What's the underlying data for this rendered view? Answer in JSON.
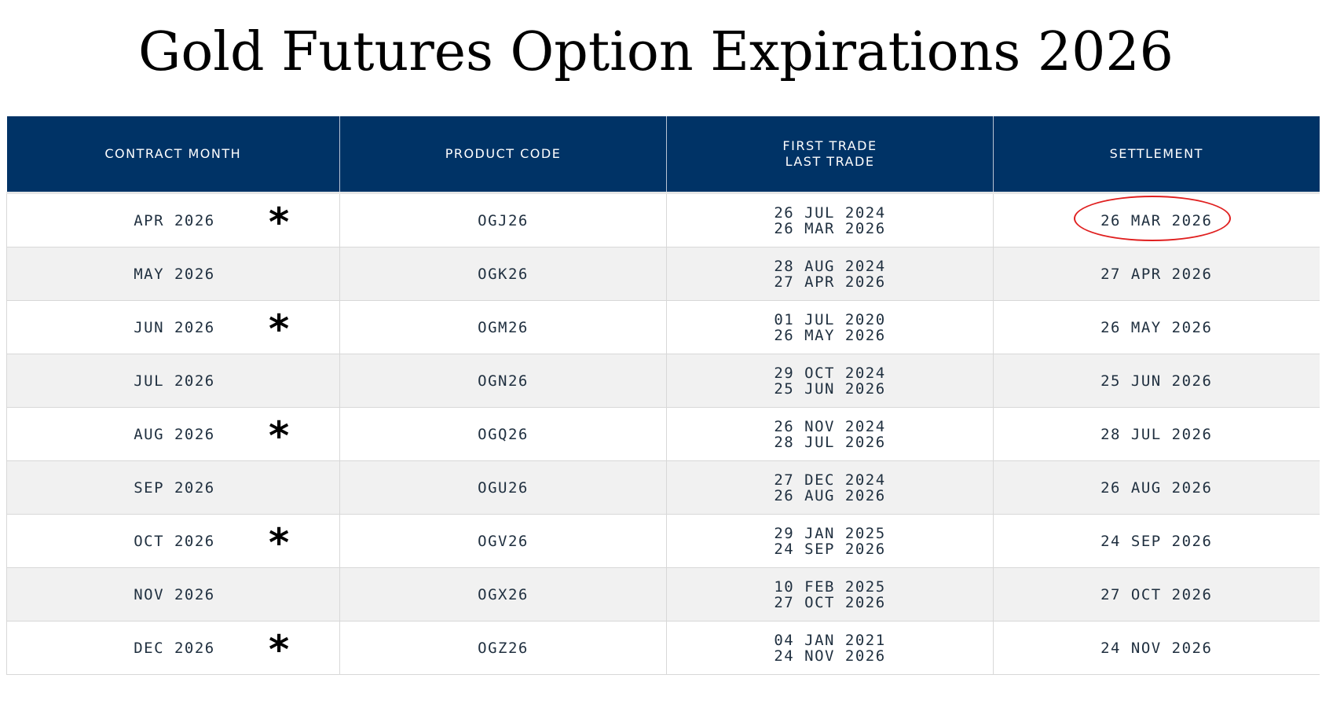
{
  "title": "Gold Futures Option Expirations 2026",
  "header": {
    "contract_month": "CONTRACT MONTH",
    "product_code": "PRODUCT CODE",
    "first_trade": "FIRST TRADE",
    "last_trade": "LAST TRADE",
    "settlement": "SETTLEMENT"
  },
  "colors": {
    "header_bg": "#003366",
    "alt_row_bg": "#f1f1f1",
    "highlight_circle": "#e02020"
  },
  "star_symbol": "*",
  "rows": [
    {
      "month": "APR 2026",
      "star": true,
      "code": "OGJ26",
      "first_trade": "26 JUL 2024",
      "last_trade": "26 MAR 2026",
      "settlement": "26 MAR 2026",
      "circled": true
    },
    {
      "month": "MAY 2026",
      "star": false,
      "code": "OGK26",
      "first_trade": "28 AUG 2024",
      "last_trade": "27 APR 2026",
      "settlement": "27 APR 2026",
      "circled": false
    },
    {
      "month": "JUN 2026",
      "star": true,
      "code": "OGM26",
      "first_trade": "01 JUL 2020",
      "last_trade": "26 MAY 2026",
      "settlement": "26 MAY 2026",
      "circled": false
    },
    {
      "month": "JUL 2026",
      "star": false,
      "code": "OGN26",
      "first_trade": "29 OCT 2024",
      "last_trade": "25 JUN 2026",
      "settlement": "25 JUN 2026",
      "circled": false
    },
    {
      "month": "AUG 2026",
      "star": true,
      "code": "OGQ26",
      "first_trade": "26 NOV 2024",
      "last_trade": "28 JUL 2026",
      "settlement": "28 JUL 2026",
      "circled": false
    },
    {
      "month": "SEP 2026",
      "star": false,
      "code": "OGU26",
      "first_trade": "27 DEC 2024",
      "last_trade": "26 AUG 2026",
      "settlement": "26 AUG 2026",
      "circled": false
    },
    {
      "month": "OCT 2026",
      "star": true,
      "code": "OGV26",
      "first_trade": "29 JAN 2025",
      "last_trade": "24 SEP 2026",
      "settlement": "24 SEP 2026",
      "circled": false
    },
    {
      "month": "NOV 2026",
      "star": false,
      "code": "OGX26",
      "first_trade": "10 FEB 2025",
      "last_trade": "27 OCT 2026",
      "settlement": "27 OCT 2026",
      "circled": false
    },
    {
      "month": "DEC 2026",
      "star": true,
      "code": "OGZ26",
      "first_trade": "04 JAN 2021",
      "last_trade": "24 NOV 2026",
      "settlement": "24 NOV 2026",
      "circled": false
    }
  ]
}
